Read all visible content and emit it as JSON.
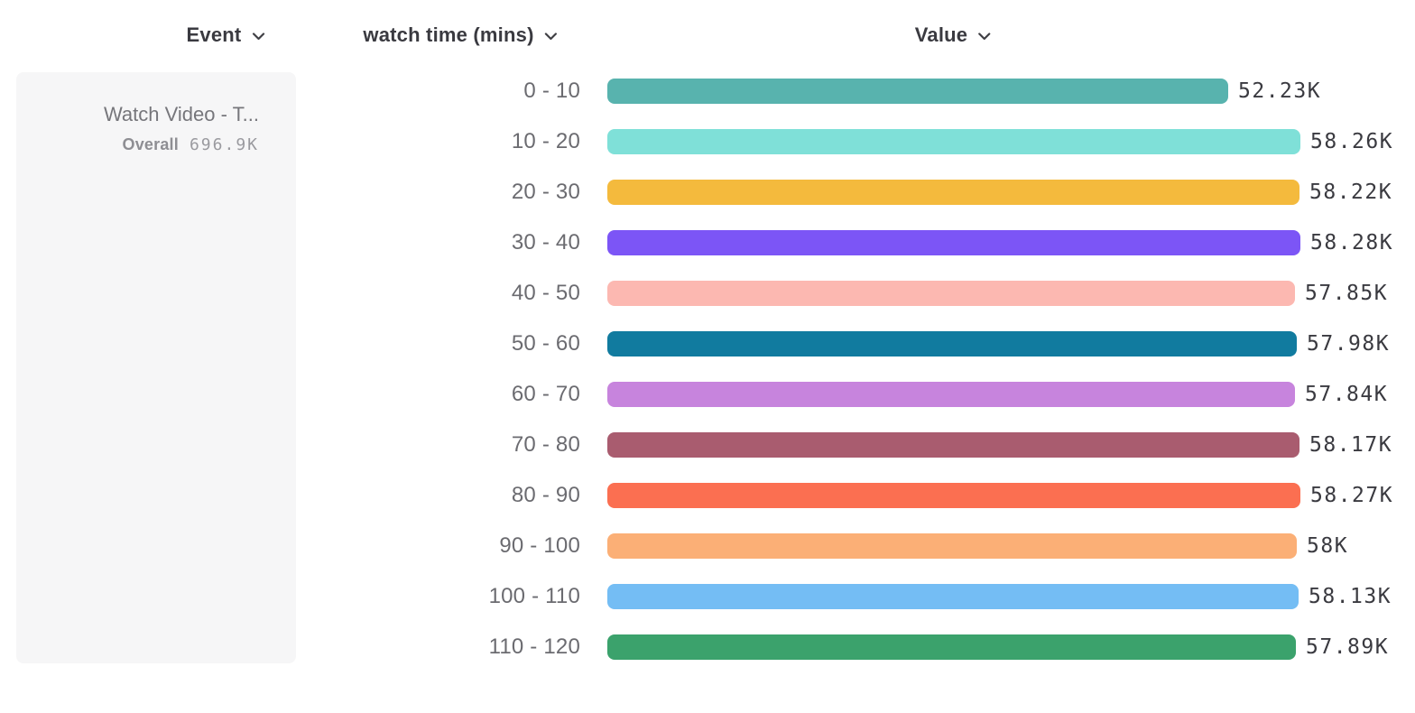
{
  "header": {
    "columns": [
      {
        "id": "event",
        "label": "Event"
      },
      {
        "id": "bucket",
        "label": "watch time (mins)"
      },
      {
        "id": "value",
        "label": "Value"
      }
    ]
  },
  "event_card": {
    "event_name": "Watch Video - T...",
    "overall_label": "Overall",
    "overall_value": "696.9K"
  },
  "chart_data": {
    "type": "bar",
    "orientation": "horizontal",
    "title": "",
    "xlabel": "Value",
    "ylabel": "watch time (mins)",
    "categories": [
      "0 - 10",
      "10 - 20",
      "20 - 30",
      "30 - 40",
      "40 - 50",
      "50 - 60",
      "60 - 70",
      "70 - 80",
      "80 - 90",
      "90 - 100",
      "100 - 110",
      "110 - 120"
    ],
    "values": [
      52230,
      58260,
      58220,
      58280,
      57850,
      57980,
      57840,
      58170,
      58270,
      58000,
      58130,
      57890
    ],
    "value_labels": [
      "52.23K",
      "58.26K",
      "58.22K",
      "58.28K",
      "57.85K",
      "57.98K",
      "57.84K",
      "58.17K",
      "58.27K",
      "58K",
      "58.13K",
      "57.89K"
    ],
    "bar_colors": [
      "#58B3AE",
      "#7FE0D8",
      "#F4BA3D",
      "#7C55F6",
      "#FCB8B1",
      "#117B9F",
      "#C784DD",
      "#A95C6F",
      "#FB6F51",
      "#FBAF76",
      "#74BDF4",
      "#3BA26C"
    ],
    "xlim": [
      0,
      58280
    ],
    "grid": false,
    "legend": false,
    "overall_total": "696.9K"
  },
  "icons": {
    "chevron_down": "chevron-down-icon"
  },
  "colors": {
    "header_text": "#3a3a40",
    "bucket_label_text": "#6b6b70",
    "value_label_text": "#3a3a40",
    "event_card_bg": "#f6f6f7",
    "event_name_text": "#76767b",
    "overall_text": "#8e8e93"
  }
}
